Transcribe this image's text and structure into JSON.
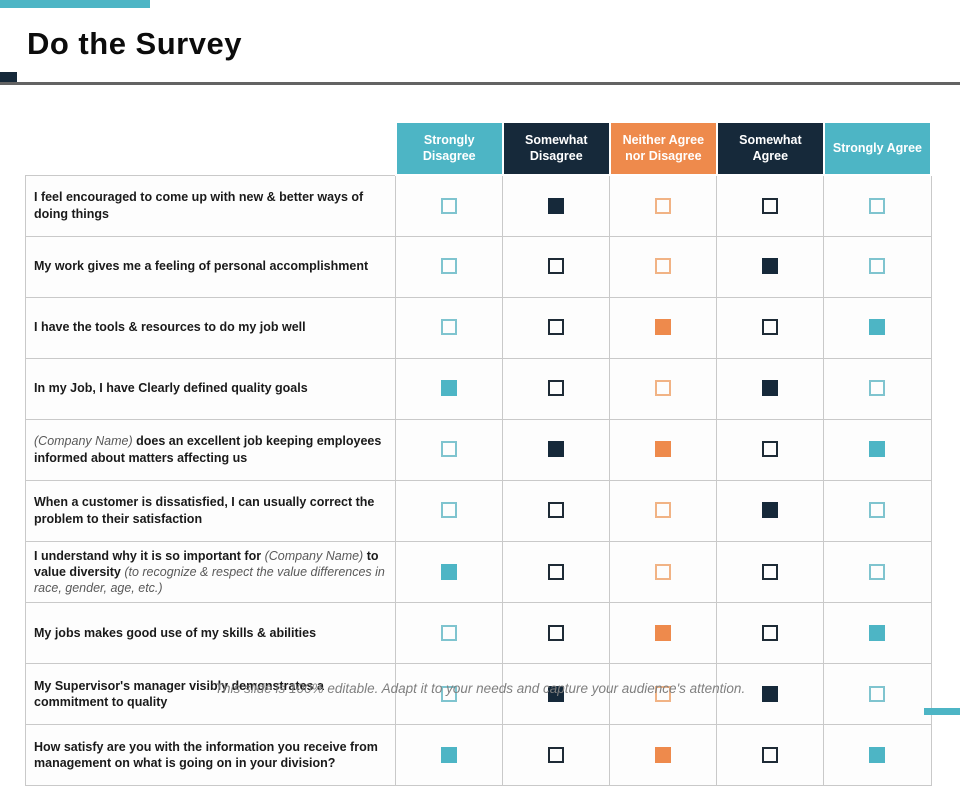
{
  "slide": {
    "title": "Do the Survey",
    "footer_note": "This slide is 100% editable. Adapt it to your needs and capture your audience's attention."
  },
  "colors": {
    "teal": "#4DB5C5",
    "navy": "#16293A",
    "orange": "#EE8A4C",
    "teal_outline": "#7FC4CF",
    "navy_outline": "#1E2B36",
    "orange_outline": "#F1B385",
    "grid_line": "#C9C9C9",
    "rule_gray": "#636363"
  },
  "survey": {
    "columns": [
      {
        "id": "strongly-disagree",
        "label": "Strongly Disagree",
        "bg": "#4DB5C5",
        "box_fill": "#4DB5C5",
        "box_outline": "#7FC4CF"
      },
      {
        "id": "somewhat-disagree",
        "label": "Somewhat Disagree",
        "bg": "#16293A",
        "box_fill": "#16293A",
        "box_outline": "#1E2B36"
      },
      {
        "id": "neither-agree-nor-disagree",
        "label": "Neither Agree nor Disagree",
        "bg": "#EE8A4C",
        "box_fill": "#EE8A4C",
        "box_outline": "#F1B385"
      },
      {
        "id": "somewhat-agree",
        "label": "Somewhat Agree",
        "bg": "#16293A",
        "box_fill": "#16293A",
        "box_outline": "#1E2B36"
      },
      {
        "id": "strongly-agree",
        "label": "Strongly Agree",
        "bg": "#4DB5C5",
        "box_fill": "#4DB5C5",
        "box_outline": "#7FC4CF"
      }
    ],
    "rows": [
      {
        "question": [
          {
            "t": "I feel encouraged to come up with new & better ways of doing things",
            "s": "b"
          }
        ],
        "answers": [
          "empty",
          "filled",
          "empty",
          "empty",
          "empty"
        ]
      },
      {
        "question": [
          {
            "t": "My work gives me a feeling of personal accomplishment",
            "s": "b"
          }
        ],
        "answers": [
          "empty",
          "empty",
          "empty",
          "filled",
          "empty"
        ]
      },
      {
        "question": [
          {
            "t": "I have the tools & resources to do my job well",
            "s": "b"
          }
        ],
        "answers": [
          "empty",
          "empty",
          "filled",
          "empty",
          "filled"
        ]
      },
      {
        "question": [
          {
            "t": "In my Job, I have Clearly defined quality goals",
            "s": "b"
          }
        ],
        "answers": [
          "filled",
          "empty",
          "empty",
          "filled",
          "empty"
        ]
      },
      {
        "question": [
          {
            "t": "(Company Name)",
            "s": "i"
          },
          {
            "t": " does an excellent job keeping employees informed about matters affecting us",
            "s": "b"
          }
        ],
        "answers": [
          "empty",
          "filled",
          "filled",
          "empty",
          "filled"
        ]
      },
      {
        "question": [
          {
            "t": "When a customer is dissatisfied, I can usually correct the problem to their satisfaction",
            "s": "b"
          }
        ],
        "answers": [
          "empty",
          "empty",
          "empty",
          "filled",
          "empty"
        ]
      },
      {
        "question": [
          {
            "t": "I understand why it is so important for ",
            "s": "b"
          },
          {
            "t": "(Company Name)",
            "s": "i"
          },
          {
            "t": " to value diversity ",
            "s": "b"
          },
          {
            "t": "(to recognize & respect the value differences in race, gender, age, etc.)",
            "s": "i"
          }
        ],
        "answers": [
          "filled",
          "empty",
          "empty",
          "empty",
          "empty"
        ]
      },
      {
        "question": [
          {
            "t": "My jobs makes good use of my skills & abilities",
            "s": "b"
          }
        ],
        "answers": [
          "empty",
          "empty",
          "filled",
          "empty",
          "filled"
        ]
      },
      {
        "question": [
          {
            "t": "My Supervisor's manager visibly demonstrates a commitment to quality",
            "s": "b"
          }
        ],
        "answers": [
          "empty",
          "filled",
          "empty",
          "filled",
          "empty"
        ]
      },
      {
        "question": [
          {
            "t": "How satisfy are you with the information you receive from management on what is going on in your division?",
            "s": "b"
          }
        ],
        "answers": [
          "filled",
          "empty",
          "filled",
          "empty",
          "filled"
        ]
      }
    ]
  }
}
